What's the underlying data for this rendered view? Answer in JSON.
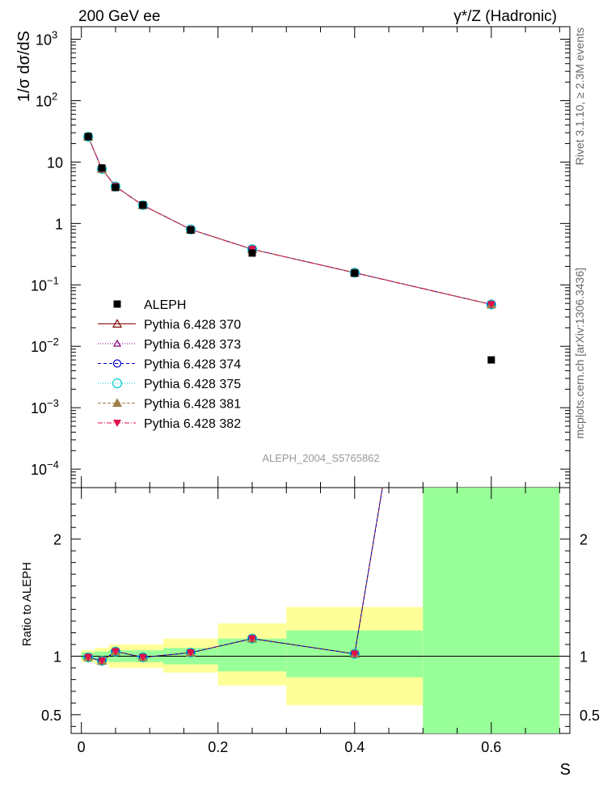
{
  "header": {
    "left_label": "200 GeV ee",
    "right_label": "γ*/Z (Hadronic)"
  },
  "side_labels": {
    "rivet": "Rivet 3.1.10, ≥ 2.3M events",
    "mcplots": "mcplots.cern.ch [arXiv:1306.3436]"
  },
  "watermark": "ALEPH_2004_S5765862",
  "axes": {
    "ylabel_top": "1/σ  dσ/dS",
    "ylabel_bottom": "Ratio to ALEPH",
    "xlabel": "S"
  },
  "colors": {
    "data": "#000000",
    "band_inner": "#99ff99",
    "band_outer": "#ffff99",
    "s370": "#800000",
    "s373": "#800080",
    "s374": "#0000cc",
    "s375": "#00cccc",
    "s381": "#a0804a",
    "s382": "#e0104a"
  },
  "chart_data": [
    {
      "type": "scatter",
      "panel": "main",
      "y_scale": "log",
      "xlim": [
        -0.015,
        0.715
      ],
      "ylim": [
        5e-05,
        1600
      ],
      "x_ticks": [
        0,
        0.2,
        0.4,
        0.6
      ],
      "y_ticks": [
        {
          "value": 0.0001,
          "label": "10",
          "exp": "−4"
        },
        {
          "value": 0.001,
          "label": "10",
          "exp": "−3"
        },
        {
          "value": 0.01,
          "label": "10",
          "exp": "−2"
        },
        {
          "value": 0.1,
          "label": "10",
          "exp": "−1"
        },
        {
          "value": 1,
          "label": "1",
          "exp": ""
        },
        {
          "value": 10,
          "label": "10",
          "exp": ""
        },
        {
          "value": 100,
          "label": "10",
          "exp": "2"
        },
        {
          "value": 1000,
          "label": "10",
          "exp": "3"
        }
      ],
      "legend_position": "center-left",
      "x": [
        0.01,
        0.03,
        0.05,
        0.09,
        0.16,
        0.25,
        0.4,
        0.6
      ],
      "data": {
        "name": "ALEPH",
        "values": [
          26.0,
          8.0,
          3.85,
          2.0,
          0.78,
          0.33,
          0.155,
          0.006
        ]
      },
      "series": [
        {
          "name": "Pythia 6.428 370",
          "marker": "triangle-open",
          "color_key": "s370",
          "dash": "",
          "values": [
            25.8,
            7.7,
            4.0,
            1.98,
            0.8,
            0.38,
            0.158,
            0.048
          ]
        },
        {
          "name": "Pythia 6.428 373",
          "marker": "triangle-open-small",
          "color_key": "s373",
          "dash": "1,2",
          "values": [
            25.9,
            7.75,
            4.0,
            1.97,
            0.8,
            0.38,
            0.157,
            0.048
          ]
        },
        {
          "name": "Pythia 6.428 374",
          "marker": "circle-open",
          "color_key": "s374",
          "dash": "4,3",
          "values": [
            25.8,
            7.7,
            4.02,
            1.98,
            0.8,
            0.38,
            0.158,
            0.048
          ]
        },
        {
          "name": "Pythia 6.428 375",
          "marker": "circle-open-big",
          "color_key": "s375",
          "dash": "1,2",
          "values": [
            25.8,
            7.72,
            4.0,
            1.98,
            0.8,
            0.38,
            0.158,
            0.048
          ]
        },
        {
          "name": "Pythia 6.428 381",
          "marker": "triangle-filled",
          "color_key": "s381",
          "dash": "4,2",
          "values": [
            25.9,
            7.7,
            4.01,
            1.97,
            0.8,
            0.38,
            0.158,
            0.048
          ]
        },
        {
          "name": "Pythia 6.428 382",
          "marker": "triangle-down-filled",
          "color_key": "s382",
          "dash": "6,2,1,2",
          "values": [
            25.8,
            7.7,
            4.0,
            1.97,
            0.8,
            0.38,
            0.157,
            0.048
          ]
        }
      ]
    },
    {
      "type": "line",
      "panel": "ratio",
      "xlim": [
        -0.015,
        0.715
      ],
      "ylim": [
        0.34,
        2.44
      ],
      "x_ticks": [
        0,
        0.2,
        0.4,
        0.6
      ],
      "y_ticks": [
        0.5,
        1,
        2
      ],
      "bands": [
        {
          "x0": 0.0,
          "x1": 0.02,
          "outer": [
            0.95,
            1.05
          ],
          "inner": [
            0.97,
            1.03
          ]
        },
        {
          "x0": 0.02,
          "x1": 0.04,
          "outer": [
            0.93,
            1.07
          ],
          "inner": [
            0.96,
            1.04
          ]
        },
        {
          "x0": 0.04,
          "x1": 0.06,
          "outer": [
            0.9,
            1.1
          ],
          "inner": [
            0.95,
            1.05
          ]
        },
        {
          "x0": 0.06,
          "x1": 0.12,
          "outer": [
            0.9,
            1.1
          ],
          "inner": [
            0.95,
            1.05
          ]
        },
        {
          "x0": 0.12,
          "x1": 0.2,
          "outer": [
            0.86,
            1.15
          ],
          "inner": [
            0.93,
            1.07
          ]
        },
        {
          "x0": 0.2,
          "x1": 0.3,
          "outer": [
            0.75,
            1.28
          ],
          "inner": [
            0.87,
            1.15
          ]
        },
        {
          "x0": 0.3,
          "x1": 0.5,
          "outer": [
            0.58,
            1.42
          ],
          "inner": [
            0.82,
            1.22
          ]
        },
        {
          "x0": 0.5,
          "x1": 0.7,
          "outer": [
            0.34,
            2.44
          ],
          "inner": [
            0.34,
            2.44
          ]
        }
      ],
      "x": [
        0.01,
        0.03,
        0.05,
        0.09,
        0.16,
        0.25,
        0.4,
        0.6
      ],
      "ratio": [
        0.99,
        0.96,
        1.04,
        0.99,
        1.03,
        1.15,
        1.02,
        8.0
      ]
    }
  ]
}
